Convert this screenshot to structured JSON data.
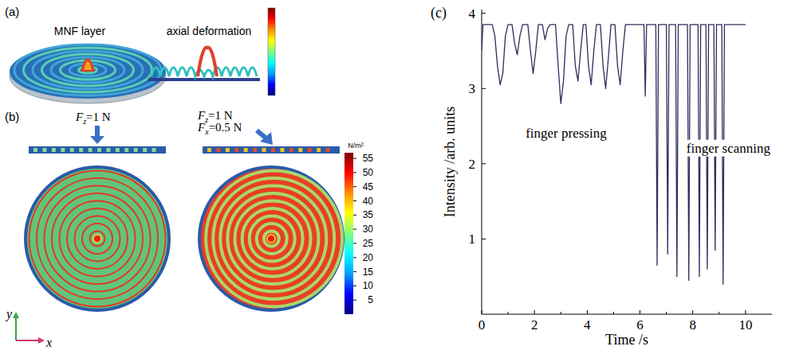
{
  "panel_a": {
    "letter": "(a)",
    "titles": [
      "MNF layer",
      "axial deformation"
    ]
  },
  "panel_b": {
    "letter": "(b)",
    "forces_left": [
      {
        "symbol": "F",
        "subscript": "z",
        "text": "=1 N"
      }
    ],
    "forces_right": [
      {
        "symbol": "F",
        "subscript": "z",
        "text": "=1 N"
      },
      {
        "symbol": "F",
        "subscript": "x",
        "text": "=0.5 N"
      }
    ],
    "axes_labels": [
      "y",
      "x"
    ],
    "colorbar": {
      "label": "N/m²",
      "range": [
        0,
        57
      ],
      "ticks": [
        5,
        10,
        15,
        20,
        25,
        30,
        35,
        40,
        45,
        50,
        55
      ]
    }
  },
  "chart_data": {
    "type": "line",
    "panel_letter": "(c)",
    "x_label": "Time /s",
    "y_label": "Intensity /arb. units",
    "annotations": [
      "finger pressing",
      "finger scanning"
    ],
    "xlim": [
      0,
      11
    ],
    "ylim": [
      0,
      4.05
    ],
    "xticks": [
      0,
      2,
      4,
      6,
      8,
      10
    ],
    "yticks": [
      1,
      2,
      3,
      4
    ],
    "grid": false,
    "x": [
      0,
      0.05,
      0.4,
      0.5,
      0.6,
      0.7,
      0.8,
      0.9,
      1.0,
      1.15,
      1.25,
      1.35,
      1.45,
      1.55,
      1.75,
      1.85,
      1.95,
      2.05,
      2.15,
      2.3,
      2.4,
      2.5,
      2.6,
      2.8,
      2.9,
      3.0,
      3.1,
      3.2,
      3.3,
      3.45,
      3.55,
      3.65,
      3.75,
      3.85,
      3.95,
      4.05,
      4.15,
      4.25,
      4.35,
      4.5,
      4.6,
      4.7,
      4.8,
      4.9,
      5.05,
      5.15,
      5.25,
      5.35,
      5.45,
      6.15,
      6.2,
      6.25,
      6.6,
      6.65,
      6.7,
      7.0,
      7.05,
      7.1,
      7.35,
      7.4,
      7.45,
      7.8,
      7.85,
      7.9,
      8.2,
      8.25,
      8.3,
      8.5,
      8.55,
      8.6,
      8.8,
      8.85,
      8.9,
      9.1,
      9.15,
      9.2,
      10.0
    ],
    "series": [
      {
        "color": "#2e2e5c",
        "values": [
          3.5,
          3.85,
          3.85,
          3.7,
          3.3,
          3.05,
          3.2,
          3.7,
          3.85,
          3.85,
          3.6,
          3.45,
          3.7,
          3.85,
          3.85,
          3.5,
          3.2,
          3.5,
          3.85,
          3.85,
          3.65,
          3.8,
          3.85,
          3.85,
          3.3,
          2.8,
          3.1,
          3.7,
          3.85,
          3.85,
          3.3,
          3.1,
          3.5,
          3.85,
          3.85,
          3.3,
          3.05,
          3.5,
          3.85,
          3.85,
          3.3,
          3.0,
          3.4,
          3.85,
          3.85,
          3.3,
          3.05,
          3.5,
          3.85,
          3.85,
          2.9,
          3.85,
          3.85,
          0.65,
          3.85,
          3.85,
          0.8,
          3.85,
          3.85,
          0.5,
          3.85,
          3.85,
          0.45,
          3.85,
          3.85,
          0.5,
          3.85,
          3.85,
          0.6,
          3.85,
          3.85,
          0.85,
          3.85,
          3.85,
          0.4,
          3.85,
          3.85
        ]
      }
    ]
  }
}
